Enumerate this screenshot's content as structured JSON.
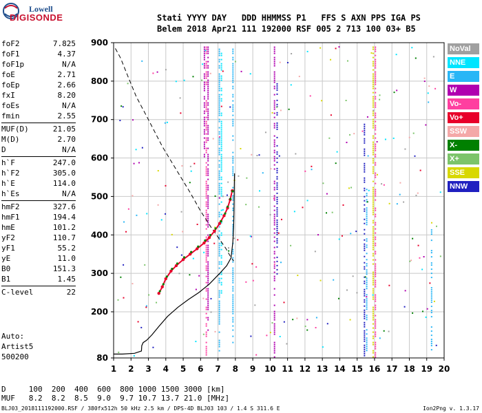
{
  "logo": {
    "line1": "Lowell",
    "line2": "DIGISONDE"
  },
  "header": {
    "line1": "Stati YYYY DAY   DDD HHMMSS P1   FFS S AXN PPS IGA PS",
    "line2": "Belem 2018 Apr21 111 192000 RSF 005 2 713 100 03+ B5"
  },
  "parameters": {
    "group1": [
      {
        "label": "foF2",
        "value": "7.825"
      },
      {
        "label": "foF1",
        "value": "4.37"
      },
      {
        "label": "foF1p",
        "value": "N/A"
      },
      {
        "label": "foE",
        "value": "2.71"
      },
      {
        "label": "foEp",
        "value": "2.66"
      },
      {
        "label": "fxI",
        "value": "8.20"
      },
      {
        "label": "foEs",
        "value": "N/A"
      },
      {
        "label": "fmin",
        "value": "2.55"
      }
    ],
    "group2": [
      {
        "label": "MUF(D)",
        "value": "21.05"
      },
      {
        "label": "M(D)",
        "value": "2.70"
      },
      {
        "label": "D",
        "value": "N/A"
      }
    ],
    "group3": [
      {
        "label": "h`F",
        "value": "247.0"
      },
      {
        "label": "h`F2",
        "value": "305.0"
      },
      {
        "label": "h`E",
        "value": "114.0"
      },
      {
        "label": "h`Es",
        "value": "N/A"
      }
    ],
    "group4": [
      {
        "label": "hmF2",
        "value": "327.6"
      },
      {
        "label": "hmF1",
        "value": "194.4"
      },
      {
        "label": "hmE",
        "value": "101.2"
      },
      {
        "label": "yF2",
        "value": "110.7"
      },
      {
        "label": "yF1",
        "value": "55.2"
      },
      {
        "label": "yE",
        "value": "11.0"
      },
      {
        "label": "B0",
        "value": "151.3"
      },
      {
        "label": "B1",
        "value": "1.45"
      }
    ],
    "group5": [
      {
        "label": "C-level",
        "value": "22"
      }
    ]
  },
  "auto": {
    "line1": "Auto:",
    "line2": "Artist5",
    "line3": "500200"
  },
  "legend": [
    {
      "label": "NoVal",
      "color": "#a0a0a0"
    },
    {
      "label": "NNE",
      "color": "#00e5ff"
    },
    {
      "label": "E",
      "color": "#29b6f6"
    },
    {
      "label": "W",
      "color": "#b000b0"
    },
    {
      "label": "Vo-",
      "color": "#ff3fa0"
    },
    {
      "label": "Vo+",
      "color": "#e8002a"
    },
    {
      "label": "SSW",
      "color": "#f4a8a8"
    },
    {
      "label": "X-",
      "color": "#008000"
    },
    {
      "label": "X+",
      "color": "#7cc46a"
    },
    {
      "label": "SSE",
      "color": "#d8d800"
    },
    {
      "label": "NNW",
      "color": "#2020c0"
    }
  ],
  "distance_muf": {
    "line1": "D     100  200  400  600  800 1000 1500 3000 [km]",
    "line2": "MUF   8.2  8.2  8.5  9.0  9.7 10.7 13.7 21.0 [MHz]"
  },
  "footer": {
    "left": "BLJ03_2018111192000.RSF / 380fx512h 50 kHz 2.5 km / DPS-4D BLJ03 103 / 1.4 S 311.6 E",
    "right": "Ion2Png v. 1.3.17"
  },
  "chart_data": {
    "type": "scatter",
    "xlim": [
      1,
      20
    ],
    "ylim": [
      80,
      900
    ],
    "xticks": [
      1,
      2,
      3,
      4,
      5,
      6,
      7,
      8,
      9,
      10,
      11,
      12,
      13,
      14,
      15,
      16,
      17,
      18,
      19,
      20
    ],
    "yticks": [
      80,
      200,
      300,
      400,
      500,
      600,
      700,
      800,
      900
    ],
    "grid": true,
    "trace_x_minus": {
      "x": [
        3.6,
        3.8,
        4.0,
        4.3,
        4.6,
        5.0,
        5.4,
        5.8,
        6.2,
        6.5,
        6.8,
        7.1,
        7.35,
        7.5,
        7.65,
        7.78
      ],
      "y": [
        250,
        268,
        288,
        308,
        322,
        338,
        352,
        366,
        382,
        396,
        413,
        432,
        452,
        470,
        490,
        510
      ]
    },
    "trace_o": {
      "x": [
        3.6,
        3.8,
        4.0,
        4.3,
        4.6,
        5.0,
        5.4,
        5.8,
        6.2,
        6.5,
        6.8,
        7.1,
        7.35,
        7.55,
        7.7,
        7.82
      ],
      "y": [
        248,
        265,
        286,
        306,
        320,
        336,
        350,
        364,
        379,
        393,
        410,
        430,
        450,
        470,
        492,
        515
      ]
    },
    "profile_solid": {
      "x": [
        1.0,
        1.5,
        2.2,
        2.6,
        2.62,
        2.7,
        2.9,
        3.2,
        3.6,
        4.1,
        4.7,
        5.3,
        5.9,
        6.5,
        7.1,
        7.5,
        7.75,
        7.85,
        7.9,
        7.92,
        7.93,
        7.94,
        7.95
      ],
      "y": [
        90,
        90,
        92,
        98,
        112,
        120,
        126,
        140,
        162,
        188,
        212,
        232,
        250,
        272,
        300,
        320,
        340,
        380,
        420,
        460,
        500,
        530,
        560
      ]
    },
    "profile_dashed": {
      "x": [
        1.1,
        1.4,
        1.8,
        2.3,
        3.0,
        3.8,
        4.6,
        5.4,
        6.0,
        6.6,
        7.1,
        7.45,
        7.7,
        7.9
      ],
      "y": [
        885,
        860,
        815,
        760,
        700,
        630,
        570,
        510,
        462,
        420,
        388,
        365,
        345,
        332
      ]
    },
    "columns": [
      {
        "x": 6.22,
        "y": [
          600,
          890
        ],
        "color": "#b000b0"
      },
      {
        "x": 6.33,
        "y": [
          80,
          890
        ],
        "color": "#ff3fa0"
      },
      {
        "x": 6.43,
        "y": [
          150,
          890
        ],
        "color": "#b000b0"
      },
      {
        "x": 7.08,
        "y": [
          100,
          890
        ],
        "color": "#29b6f6"
      },
      {
        "x": 7.2,
        "y": [
          250,
          890
        ],
        "color": "#00e5ff"
      },
      {
        "x": 7.86,
        "y": [
          100,
          890
        ],
        "color": "#29b6f6"
      },
      {
        "x": 10.25,
        "y": [
          80,
          890
        ],
        "color": "#b000b0"
      },
      {
        "x": 10.4,
        "y": [
          300,
          800
        ],
        "color": "#2020c0"
      },
      {
        "x": 15.42,
        "y": [
          80,
          700
        ],
        "color": "#2020c0"
      },
      {
        "x": 15.55,
        "y": [
          80,
          520
        ],
        "color": "#29b6f6"
      },
      {
        "x": 15.92,
        "y": [
          80,
          890
        ],
        "color": "#d8d800"
      },
      {
        "x": 16.05,
        "y": [
          80,
          890
        ],
        "color": "#ff3fa0"
      },
      {
        "x": 19.28,
        "y": [
          100,
          420
        ],
        "color": "#29b6f6"
      }
    ]
  }
}
